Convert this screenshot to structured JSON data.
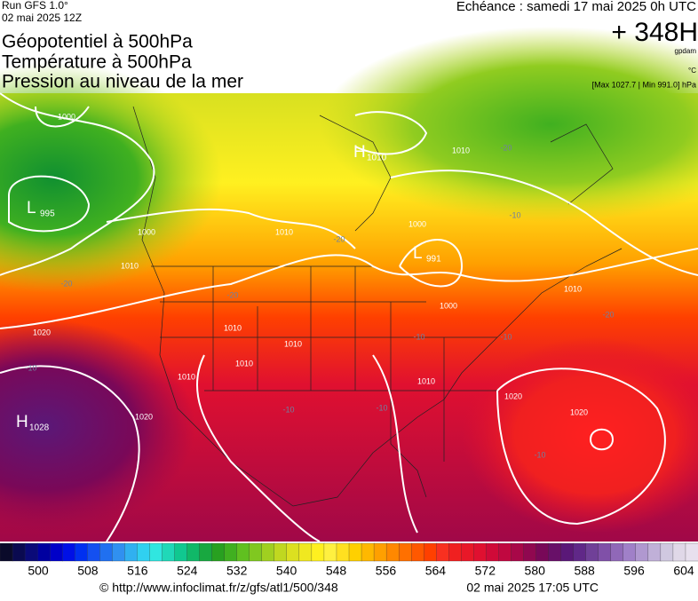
{
  "header": {
    "run": "Run GFS 1.0°",
    "date": "02 mai 2025 12Z",
    "titles": [
      "Géopotentiel à 500hPa",
      "Température à 500hPa",
      "Pression au niveau de la mer"
    ],
    "valid": "Echéance : samedi 17 mai 2025 0h UTC",
    "lead": "+ 348H",
    "unit_geo": "gpdam",
    "unit_temp": "°C",
    "pressure_range": "[Max 1027.7 | Min 991.0] hPa"
  },
  "map": {
    "centers": [
      {
        "letter": "L",
        "value": 995
      },
      {
        "letter": "H",
        "value": 1010
      },
      {
        "letter": "L",
        "value": 991
      },
      {
        "letter": "H",
        "value": 1028
      }
    ],
    "isobar_labels": [
      1000,
      1000,
      1010,
      1010,
      1020,
      1010,
      1010,
      1010,
      1010,
      1020,
      1010,
      1000,
      1000,
      1010,
      1010,
      1020,
      1020
    ],
    "temp_labels": [
      -20,
      -10,
      -20,
      -20,
      -20,
      -10,
      -10,
      -10,
      -10,
      -20,
      -10,
      -10
    ]
  },
  "colorbar": {
    "ticks": [
      500,
      508,
      516,
      524,
      532,
      540,
      548,
      556,
      564,
      572,
      580,
      588,
      596,
      604
    ],
    "colors": [
      "#0a0a2a",
      "#0a0a50",
      "#0a0a78",
      "#0000a0",
      "#0000c8",
      "#0010e6",
      "#0030f0",
      "#1450f0",
      "#2070f0",
      "#3090f0",
      "#30b0f0",
      "#30d0f0",
      "#30e6e0",
      "#20d8b8",
      "#10c890",
      "#10b868",
      "#18a840",
      "#28a020",
      "#40b020",
      "#60c020",
      "#80c820",
      "#a0d020",
      "#c0d820",
      "#dce020",
      "#f0e820",
      "#fff020",
      "#fff040",
      "#ffe020",
      "#ffd000",
      "#ffb800",
      "#ffa000",
      "#ff8800",
      "#ff7000",
      "#ff5800",
      "#ff4000",
      "#f83020",
      "#f02020",
      "#e81828",
      "#e01030",
      "#d00a38",
      "#c00840",
      "#a80848",
      "#900850",
      "#780858",
      "#681068",
      "#5a1878",
      "#602888",
      "#704098",
      "#8050a8",
      "#9068b8",
      "#a080c8",
      "#b098d0",
      "#c0b0d8",
      "#d0c8e0",
      "#e0d8e8",
      "#e8e0ee"
    ]
  },
  "footer": {
    "source": "© http://www.infoclimat.fr/z/gfs/atl1/500/348",
    "generated": "02 mai 2025 17:05 UTC"
  }
}
